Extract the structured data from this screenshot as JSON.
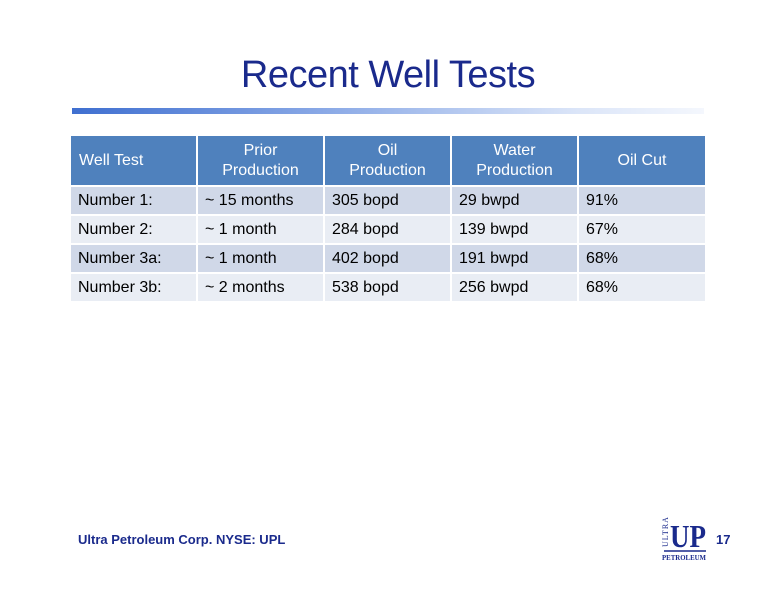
{
  "slide": {
    "title": "Recent Well Tests",
    "page_number": "17",
    "footer": "Ultra Petroleum Corp. NYSE: UPL"
  },
  "logo": {
    "vertical_text": "ULTRA",
    "letters": "UP",
    "bottom_text": "PETROLEUM",
    "color": "#1a2a8c"
  },
  "table": {
    "headers": [
      [
        "Well Test"
      ],
      [
        "Prior",
        "Production"
      ],
      [
        "Oil",
        "Production"
      ],
      [
        "Water",
        "Production"
      ],
      [
        "Oil Cut"
      ]
    ],
    "rows": [
      [
        "Number 1:",
        "~ 15 months",
        "305 bopd",
        "29 bwpd",
        "91%"
      ],
      [
        "Number 2:",
        "~ 1 month",
        "284 bopd",
        "139 bwpd",
        "67%"
      ],
      [
        "Number 3a:",
        "~ 1 month",
        "402 bopd",
        "191 bwpd",
        "68%"
      ],
      [
        "Number 3b:",
        "~ 2 months",
        "538 bopd",
        "256 bwpd",
        "68%"
      ]
    ],
    "colors": {
      "header": "#4f81bd",
      "row_odd": "#d0d8e8",
      "row_even": "#e9edf4"
    }
  }
}
